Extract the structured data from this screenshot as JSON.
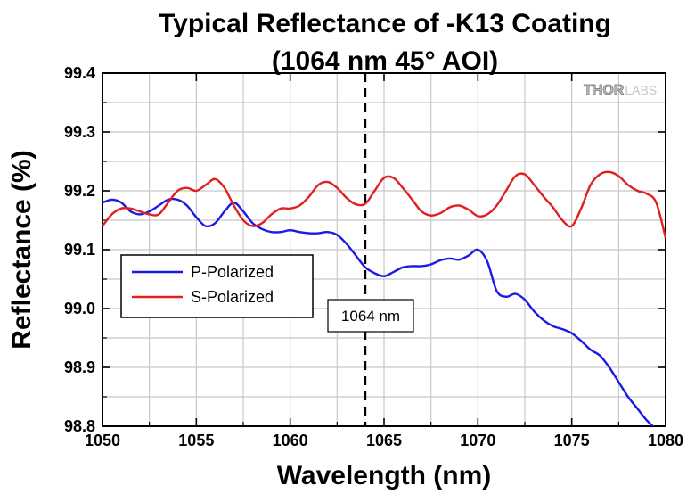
{
  "chart_data": {
    "type": "line",
    "title": "Typical Reflectance of -K13 Coating",
    "subtitle": "(1064 nm 45° AOI)",
    "xlabel": "Wavelength (nm)",
    "ylabel": "Reflectance (%)",
    "xlim": [
      1050,
      1080
    ],
    "ylim": [
      98.8,
      99.4
    ],
    "xticks": [
      "1050",
      "1055",
      "1060",
      "1065",
      "1070",
      "1075",
      "1080"
    ],
    "yticks": [
      "98.8",
      "98.9",
      "99.0",
      "99.1",
      "99.2",
      "99.3",
      "99.4"
    ],
    "grid": true,
    "legend_position": "left-middle",
    "annotation": {
      "label": "1064 nm",
      "x": 1064
    },
    "logo": {
      "part1": "THOR",
      "part2": "LABS"
    },
    "series": [
      {
        "name": "P-Polarized",
        "color": "#1a1ae6",
        "x": [
          1050,
          1050.5,
          1051,
          1051.5,
          1052,
          1052.5,
          1053,
          1053.5,
          1054,
          1054.5,
          1055,
          1055.5,
          1056,
          1056.5,
          1057,
          1057.5,
          1058,
          1058.5,
          1059,
          1059.5,
          1060,
          1060.5,
          1061,
          1061.5,
          1062,
          1062.5,
          1063,
          1063.5,
          1064,
          1064.5,
          1065,
          1065.5,
          1066,
          1066.5,
          1067,
          1067.5,
          1068,
          1068.5,
          1069,
          1069.5,
          1070,
          1070.5,
          1071,
          1071.5,
          1072,
          1072.5,
          1073,
          1073.5,
          1074,
          1074.5,
          1075,
          1075.5,
          1076,
          1076.5,
          1077,
          1077.5,
          1078,
          1078.5,
          1079,
          1079.5
        ],
        "y": [
          99.18,
          99.185,
          99.18,
          99.165,
          99.16,
          99.165,
          99.175,
          99.185,
          99.185,
          99.175,
          99.155,
          99.14,
          99.145,
          99.165,
          99.18,
          99.165,
          99.145,
          99.135,
          99.13,
          99.13,
          99.133,
          99.13,
          99.128,
          99.128,
          99.13,
          99.125,
          99.11,
          99.09,
          99.07,
          99.06,
          99.055,
          99.062,
          99.07,
          99.072,
          99.072,
          99.075,
          99.082,
          99.085,
          99.083,
          99.09,
          99.1,
          99.08,
          99.03,
          99.02,
          99.025,
          99.015,
          98.995,
          98.98,
          98.97,
          98.965,
          98.958,
          98.945,
          98.93,
          98.92,
          98.9,
          98.875,
          98.85,
          98.83,
          98.81,
          98.795
        ]
      },
      {
        "name": "S-Polarized",
        "color": "#e02020",
        "x": [
          1050,
          1050.5,
          1051,
          1051.5,
          1052,
          1052.5,
          1053,
          1053.5,
          1054,
          1054.5,
          1055,
          1055.5,
          1056,
          1056.5,
          1057,
          1057.5,
          1058,
          1058.5,
          1059,
          1059.5,
          1060,
          1060.5,
          1061,
          1061.5,
          1062,
          1062.5,
          1063,
          1063.5,
          1064,
          1064.5,
          1065,
          1065.5,
          1066,
          1066.5,
          1067,
          1067.5,
          1068,
          1068.5,
          1069,
          1069.5,
          1070,
          1070.5,
          1071,
          1071.5,
          1072,
          1072.5,
          1073,
          1073.5,
          1074,
          1074.5,
          1075,
          1075.5,
          1076,
          1076.5,
          1077,
          1077.5,
          1078,
          1078.5,
          1079,
          1079.5,
          1080
        ],
        "y": [
          99.14,
          99.16,
          99.17,
          99.17,
          99.165,
          99.16,
          99.16,
          99.18,
          99.2,
          99.205,
          99.2,
          99.21,
          99.22,
          99.205,
          99.175,
          99.15,
          99.14,
          99.145,
          99.16,
          99.17,
          99.17,
          99.175,
          99.19,
          99.21,
          99.215,
          99.205,
          99.188,
          99.177,
          99.178,
          99.2,
          99.222,
          99.222,
          99.205,
          99.185,
          99.165,
          99.158,
          99.162,
          99.172,
          99.175,
          99.168,
          99.157,
          99.16,
          99.175,
          99.2,
          99.225,
          99.228,
          99.21,
          99.19,
          99.172,
          99.15,
          99.14,
          99.17,
          99.21,
          99.228,
          99.232,
          99.225,
          99.21,
          99.2,
          99.195,
          99.18,
          99.12
        ]
      }
    ]
  }
}
